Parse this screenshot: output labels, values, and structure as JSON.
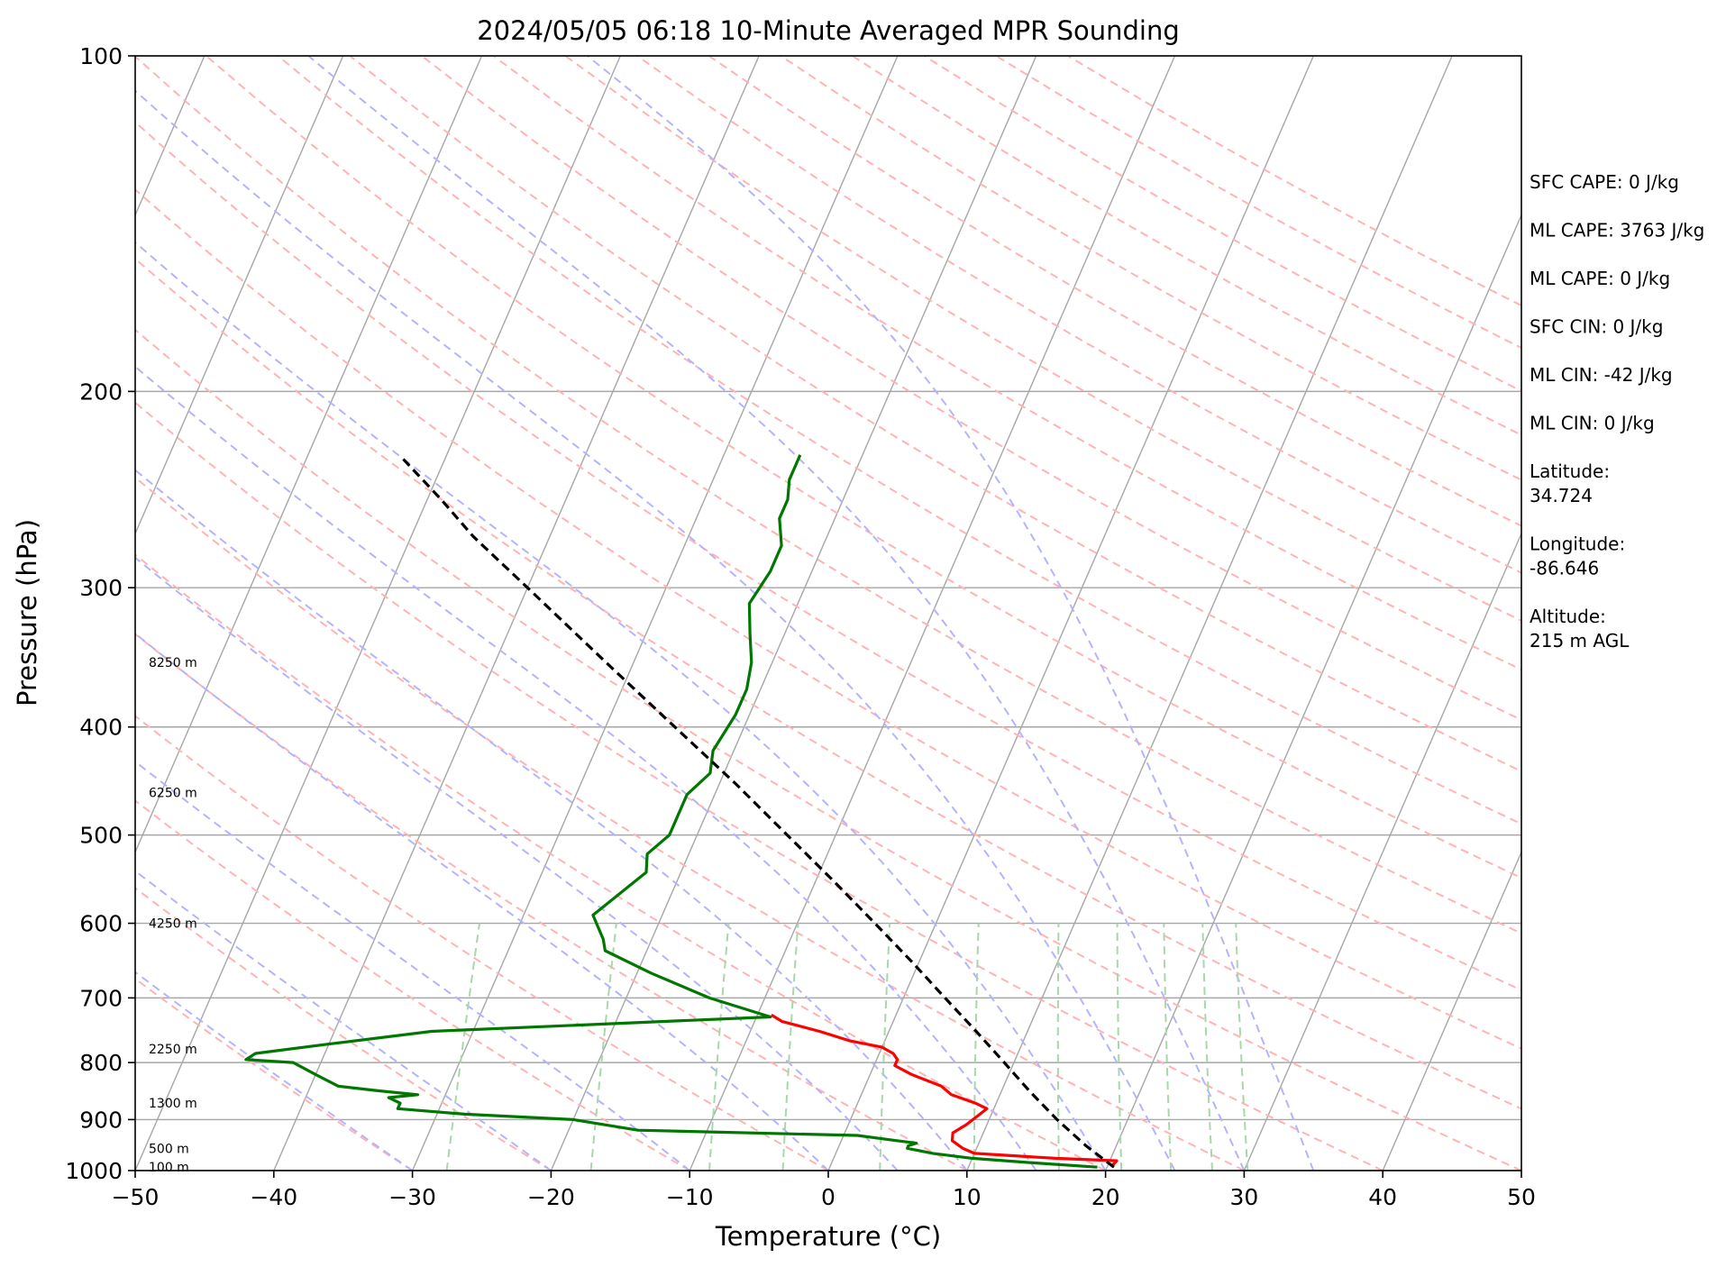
{
  "chart_data": {
    "type": "skew-t",
    "title": "2024/05/05 06:18 10-Minute Averaged MPR Sounding",
    "xlabel": "Temperature (°C)",
    "ylabel": "Pressure (hPa)",
    "xlim": [
      -50,
      50
    ],
    "ylim": [
      1000,
      100
    ],
    "y_scale": "log",
    "x_ticks": [
      "−50",
      "−40",
      "−30",
      "−20",
      "−10",
      "0",
      "10",
      "20",
      "30",
      "40",
      "50"
    ],
    "x_tick_values": [
      -50,
      -40,
      -30,
      -20,
      -10,
      0,
      10,
      20,
      30,
      40,
      50
    ],
    "y_ticks": [
      "100",
      "200",
      "300",
      "400",
      "500",
      "600",
      "700",
      "800",
      "900",
      "1000"
    ],
    "y_tick_values": [
      100,
      200,
      300,
      400,
      500,
      600,
      700,
      800,
      900,
      1000
    ],
    "grid": true,
    "colors": {
      "temperature": "#ff0000",
      "dewpoint": "#007700",
      "parcel": "#000000",
      "isotherm": "#a6a6a6",
      "dry_adiabat": "#ffb3b3",
      "moist_adiabat": "#b3b3ff",
      "mixing_ratio": "#a8d8a8"
    },
    "height_labels": [
      {
        "text": "8250 m",
        "p": 350
      },
      {
        "text": "6250 m",
        "p": 458
      },
      {
        "text": "4250 m",
        "p": 600
      },
      {
        "text": "2250 m",
        "p": 778
      },
      {
        "text": "1300 m",
        "p": 870
      },
      {
        "text": "500 m",
        "p": 955
      },
      {
        "text": "100 m",
        "p": 993
      }
    ],
    "info_panel": [
      "SFC CAPE: 0 J/kg",
      "ML CAPE: 3763 J/kg",
      "ML CAPE: 0 J/kg",
      "SFC CIN: 0 J/kg",
      "ML CIN: -42 J/kg",
      "ML CIN: 0 J/kg",
      "Latitude:",
      "34.724",
      "Longitude:",
      "-86.646",
      "Altitude:",
      "215 m AGL"
    ],
    "series": [
      {
        "name": "temperature",
        "points": [
          [
            991,
            20.3
          ],
          [
            980,
            20.5
          ],
          [
            975,
            16
          ],
          [
            965,
            10
          ],
          [
            955,
            9
          ],
          [
            940,
            8
          ],
          [
            925,
            7.8
          ],
          [
            910,
            8.5
          ],
          [
            895,
            9
          ],
          [
            880,
            9.5
          ],
          [
            870,
            8.5
          ],
          [
            855,
            6.5
          ],
          [
            840,
            5.5
          ],
          [
            820,
            3
          ],
          [
            805,
            1.5
          ],
          [
            795,
            1.5
          ],
          [
            785,
            1
          ],
          [
            775,
            0
          ],
          [
            765,
            -2.5
          ],
          [
            750,
            -5
          ],
          [
            735,
            -8
          ],
          [
            725,
            -9
          ]
        ]
      },
      {
        "name": "dewpoint",
        "points": [
          [
            993,
            19.3
          ],
          [
            985,
            15
          ],
          [
            975,
            10
          ],
          [
            965,
            7
          ],
          [
            955,
            5
          ],
          [
            950,
            5
          ],
          [
            945,
            5.5
          ],
          [
            940,
            4
          ],
          [
            935,
            2.5
          ],
          [
            930,
            1
          ],
          [
            920,
            -15
          ],
          [
            900,
            -20
          ],
          [
            890,
            -28
          ],
          [
            880,
            -33
          ],
          [
            870,
            -33
          ],
          [
            860,
            -34
          ],
          [
            855,
            -32
          ],
          [
            848,
            -35
          ],
          [
            840,
            -38
          ],
          [
            820,
            -40
          ],
          [
            800,
            -42
          ],
          [
            795,
            -45.5
          ],
          [
            785,
            -45
          ],
          [
            770,
            -40
          ],
          [
            750,
            -33
          ],
          [
            728,
            -9
          ],
          [
            700,
            -14
          ],
          [
            665,
            -19
          ],
          [
            635,
            -23
          ],
          [
            620,
            -23.5
          ],
          [
            590,
            -25
          ],
          [
            540,
            -22.5
          ],
          [
            520,
            -23
          ],
          [
            500,
            -22
          ],
          [
            490,
            -22
          ],
          [
            460,
            -22
          ],
          [
            440,
            -21
          ],
          [
            420,
            -21.5
          ],
          [
            390,
            -21
          ],
          [
            370,
            -21
          ],
          [
            350,
            -21.5
          ],
          [
            330,
            -22.5
          ],
          [
            310,
            -23.5
          ],
          [
            290,
            -23
          ],
          [
            275,
            -23
          ],
          [
            260,
            -24
          ],
          [
            250,
            -24
          ],
          [
            240,
            -24.5
          ],
          [
            228,
            -24.5
          ]
        ]
      },
      {
        "name": "parcel",
        "points": [
          [
            993,
            20.5
          ],
          [
            950,
            17.8
          ],
          [
            900,
            14.9
          ],
          [
            850,
            12.1
          ],
          [
            800,
            9.3
          ],
          [
            750,
            6.3
          ],
          [
            700,
            3.0
          ],
          [
            650,
            -0.5
          ],
          [
            600,
            -4.4
          ],
          [
            550,
            -8.7
          ],
          [
            500,
            -13.5
          ],
          [
            450,
            -18.8
          ],
          [
            400,
            -25
          ],
          [
            350,
            -32
          ],
          [
            300,
            -40
          ],
          [
            270,
            -45.5
          ],
          [
            250,
            -49
          ],
          [
            230,
            -53
          ]
        ]
      }
    ]
  }
}
